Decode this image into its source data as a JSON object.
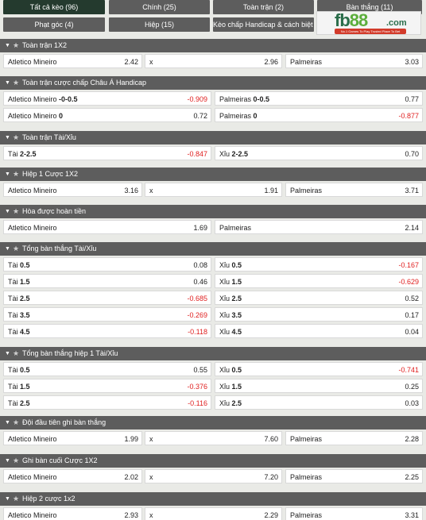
{
  "tabs": [
    {
      "label": "Tất cả kèo (96)",
      "active": true
    },
    {
      "label": "Chính (25)"
    },
    {
      "label": "Toàn trận (2)"
    },
    {
      "label": "Bàn thắng (11)"
    },
    {
      "label": "Phạt góc (4)"
    },
    {
      "label": "Hiệp (15)"
    },
    {
      "label": "Kèo chấp Handicap & cách biệt (2)"
    }
  ],
  "logo": {
    "brand": "fb",
    "number": "88",
    "suffix": ".com",
    "tagline": "No.1 Games To Play  Trusted Place To Bet"
  },
  "colors": {
    "header": "#5d5d5d",
    "active_tab": "#243a2e",
    "negative": "#e02020"
  },
  "sections": [
    {
      "title": "Toàn trận 1X2",
      "rows": [
        [
          {
            "l": "Atletico Mineiro",
            "o": "2.42"
          },
          {
            "l": "x",
            "o": "2.96"
          },
          {
            "l": "Palmeiras",
            "o": "3.03"
          }
        ]
      ]
    },
    {
      "title": "Toàn trận cược chấp Châu Á Handicap",
      "rows": [
        [
          {
            "l": "Atletico Mineiro",
            "h": "-0-0.5",
            "o": "-0.909"
          },
          {
            "l": "Palmeiras",
            "h": "0-0.5",
            "o": "0.77"
          }
        ],
        [
          {
            "l": "Atletico Mineiro",
            "h": "0",
            "o": "0.72"
          },
          {
            "l": "Palmeiras",
            "h": "0",
            "o": "-0.877"
          }
        ]
      ]
    },
    {
      "title": "Toàn trận Tài/Xỉu",
      "rows": [
        [
          {
            "l": "Tài",
            "h": "2-2.5",
            "o": "-0.847"
          },
          {
            "l": "Xỉu",
            "h": "2-2.5",
            "o": "0.70"
          }
        ]
      ]
    },
    {
      "title": "Hiệp 1 Cược 1X2",
      "rows": [
        [
          {
            "l": "Atletico Mineiro",
            "o": "3.16"
          },
          {
            "l": "x",
            "o": "1.91"
          },
          {
            "l": "Palmeiras",
            "o": "3.71"
          }
        ]
      ]
    },
    {
      "title": "Hòa được hoàn tiền",
      "rows": [
        [
          {
            "l": "Atletico Mineiro",
            "o": "1.69"
          },
          {
            "l": "Palmeiras",
            "o": "2.14"
          }
        ]
      ]
    },
    {
      "title": "Tổng bàn thắng Tài/Xỉu",
      "rows": [
        [
          {
            "l": "Tài",
            "h": "0.5",
            "o": "0.08"
          },
          {
            "l": "Xỉu",
            "h": "0.5",
            "o": "-0.167"
          }
        ],
        [
          {
            "l": "Tài",
            "h": "1.5",
            "o": "0.46"
          },
          {
            "l": "Xỉu",
            "h": "1.5",
            "o": "-0.629"
          }
        ],
        [
          {
            "l": "Tài",
            "h": "2.5",
            "o": "-0.685"
          },
          {
            "l": "Xỉu",
            "h": "2.5",
            "o": "0.52"
          }
        ],
        [
          {
            "l": "Tài",
            "h": "3.5",
            "o": "-0.269"
          },
          {
            "l": "Xỉu",
            "h": "3.5",
            "o": "0.17"
          }
        ],
        [
          {
            "l": "Tài",
            "h": "4.5",
            "o": "-0.118"
          },
          {
            "l": "Xỉu",
            "h": "4.5",
            "o": "0.04"
          }
        ]
      ]
    },
    {
      "title": "Tổng bàn thắng hiệp 1 Tài/Xỉu",
      "rows": [
        [
          {
            "l": "Tài",
            "h": "0.5",
            "o": "0.55"
          },
          {
            "l": "Xỉu",
            "h": "0.5",
            "o": "-0.741"
          }
        ],
        [
          {
            "l": "Tài",
            "h": "1.5",
            "o": "-0.376"
          },
          {
            "l": "Xỉu",
            "h": "1.5",
            "o": "0.25"
          }
        ],
        [
          {
            "l": "Tài",
            "h": "2.5",
            "o": "-0.116"
          },
          {
            "l": "Xỉu",
            "h": "2.5",
            "o": "0.03"
          }
        ]
      ]
    },
    {
      "title": "Đội đầu tiên ghi bàn thắng",
      "rows": [
        [
          {
            "l": "Atletico Mineiro",
            "o": "1.99"
          },
          {
            "l": "x",
            "o": "7.60"
          },
          {
            "l": "Palmeiras",
            "o": "2.28"
          }
        ]
      ]
    },
    {
      "title": "Ghi bàn cuối Cược 1X2",
      "rows": [
        [
          {
            "l": "Atletico Mineiro",
            "o": "2.02"
          },
          {
            "l": "x",
            "o": "7.20"
          },
          {
            "l": "Palmeiras",
            "o": "2.25"
          }
        ]
      ]
    },
    {
      "title": "Hiệp 2 cược 1x2",
      "rows": [
        [
          {
            "l": "Atletico Mineiro",
            "o": "2.93"
          },
          {
            "l": "x",
            "o": "2.29"
          },
          {
            "l": "Palmeiras",
            "o": "3.31"
          }
        ]
      ]
    }
  ]
}
